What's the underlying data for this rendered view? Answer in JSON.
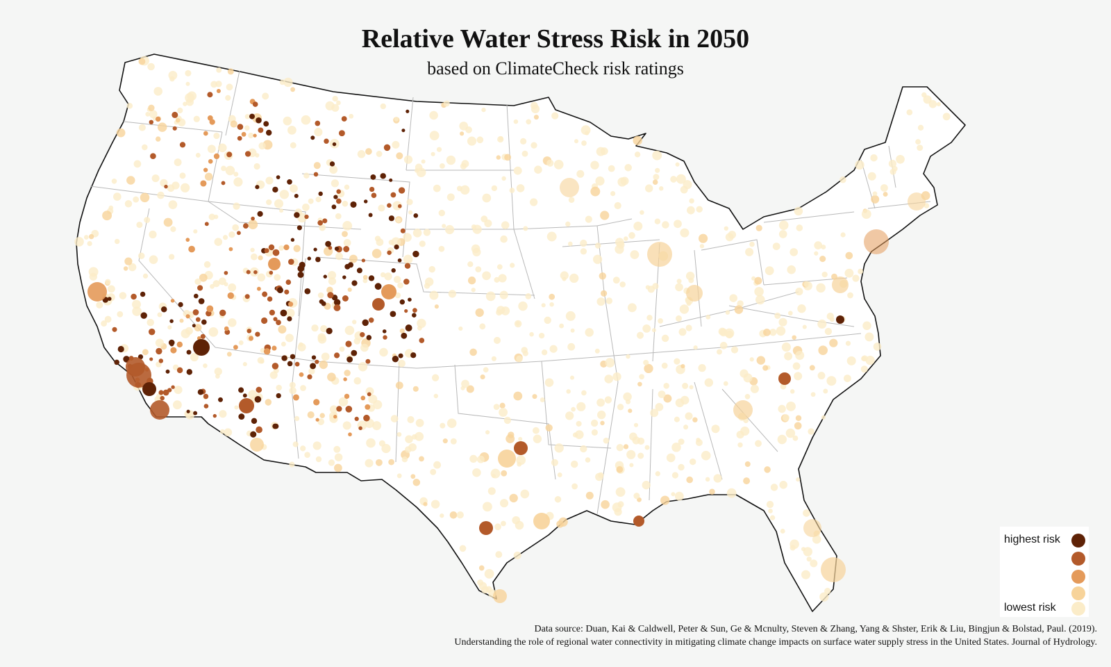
{
  "title": "Relative Water Stress Risk in 2050",
  "subtitle": "based on ClimateCheck risk ratings",
  "legend": {
    "high_label": "highest risk",
    "low_label": "lowest risk",
    "colors": [
      "#5e2206",
      "#b35a2a",
      "#e49a5a",
      "#f7d39a",
      "#fbecc8"
    ]
  },
  "source": {
    "line1": "Data source: Duan, Kai & Caldwell, Peter & Sun, Ge & Mcnulty, Steven & Zhang, Yang & Shster, Erik & Liu, Bingjun & Bolstad, Paul. (2019).",
    "line2": "Understanding the role of regional water connectivity in mitigating climate change impacts on surface water supply stress in the United States. Journal of Hydrology."
  },
  "map": {
    "land_color": "#ffffff",
    "border_color": "#111111",
    "state_line_color": "#b8b8b8"
  }
}
